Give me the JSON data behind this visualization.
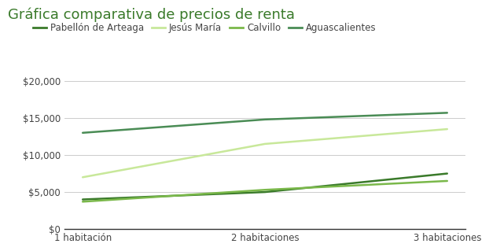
{
  "title": "Gráfica comparativa de precios de renta",
  "categories": [
    "1 habitación",
    "2 habitaciones",
    "3 habitaciones"
  ],
  "series": [
    {
      "name": "Pabellón de Arteaga",
      "values": [
        4000,
        5000,
        7500
      ],
      "color": "#3a7a2a",
      "linewidth": 1.8
    },
    {
      "name": "Jesús María",
      "values": [
        7000,
        11500,
        13500
      ],
      "color": "#c8e89a",
      "linewidth": 1.8
    },
    {
      "name": "Calvillo",
      "values": [
        3700,
        5300,
        6500
      ],
      "color": "#7ab84a",
      "linewidth": 1.8
    },
    {
      "name": "Aguascalientes",
      "values": [
        13000,
        14800,
        15700
      ],
      "color": "#4a8c55",
      "linewidth": 1.8
    }
  ],
  "ylim": [
    0,
    21000
  ],
  "yticks": [
    0,
    5000,
    10000,
    15000,
    20000
  ],
  "ytick_labels": [
    "$0",
    "$5,000",
    "$10,000",
    "$15,000",
    "$20,000"
  ],
  "title_color": "#3a7a2a",
  "title_fontsize": 13,
  "grid_color": "#cccccc",
  "background_color": "#ffffff",
  "legend_fontsize": 8.5,
  "tick_fontsize": 8.5,
  "tick_color": "#444444"
}
